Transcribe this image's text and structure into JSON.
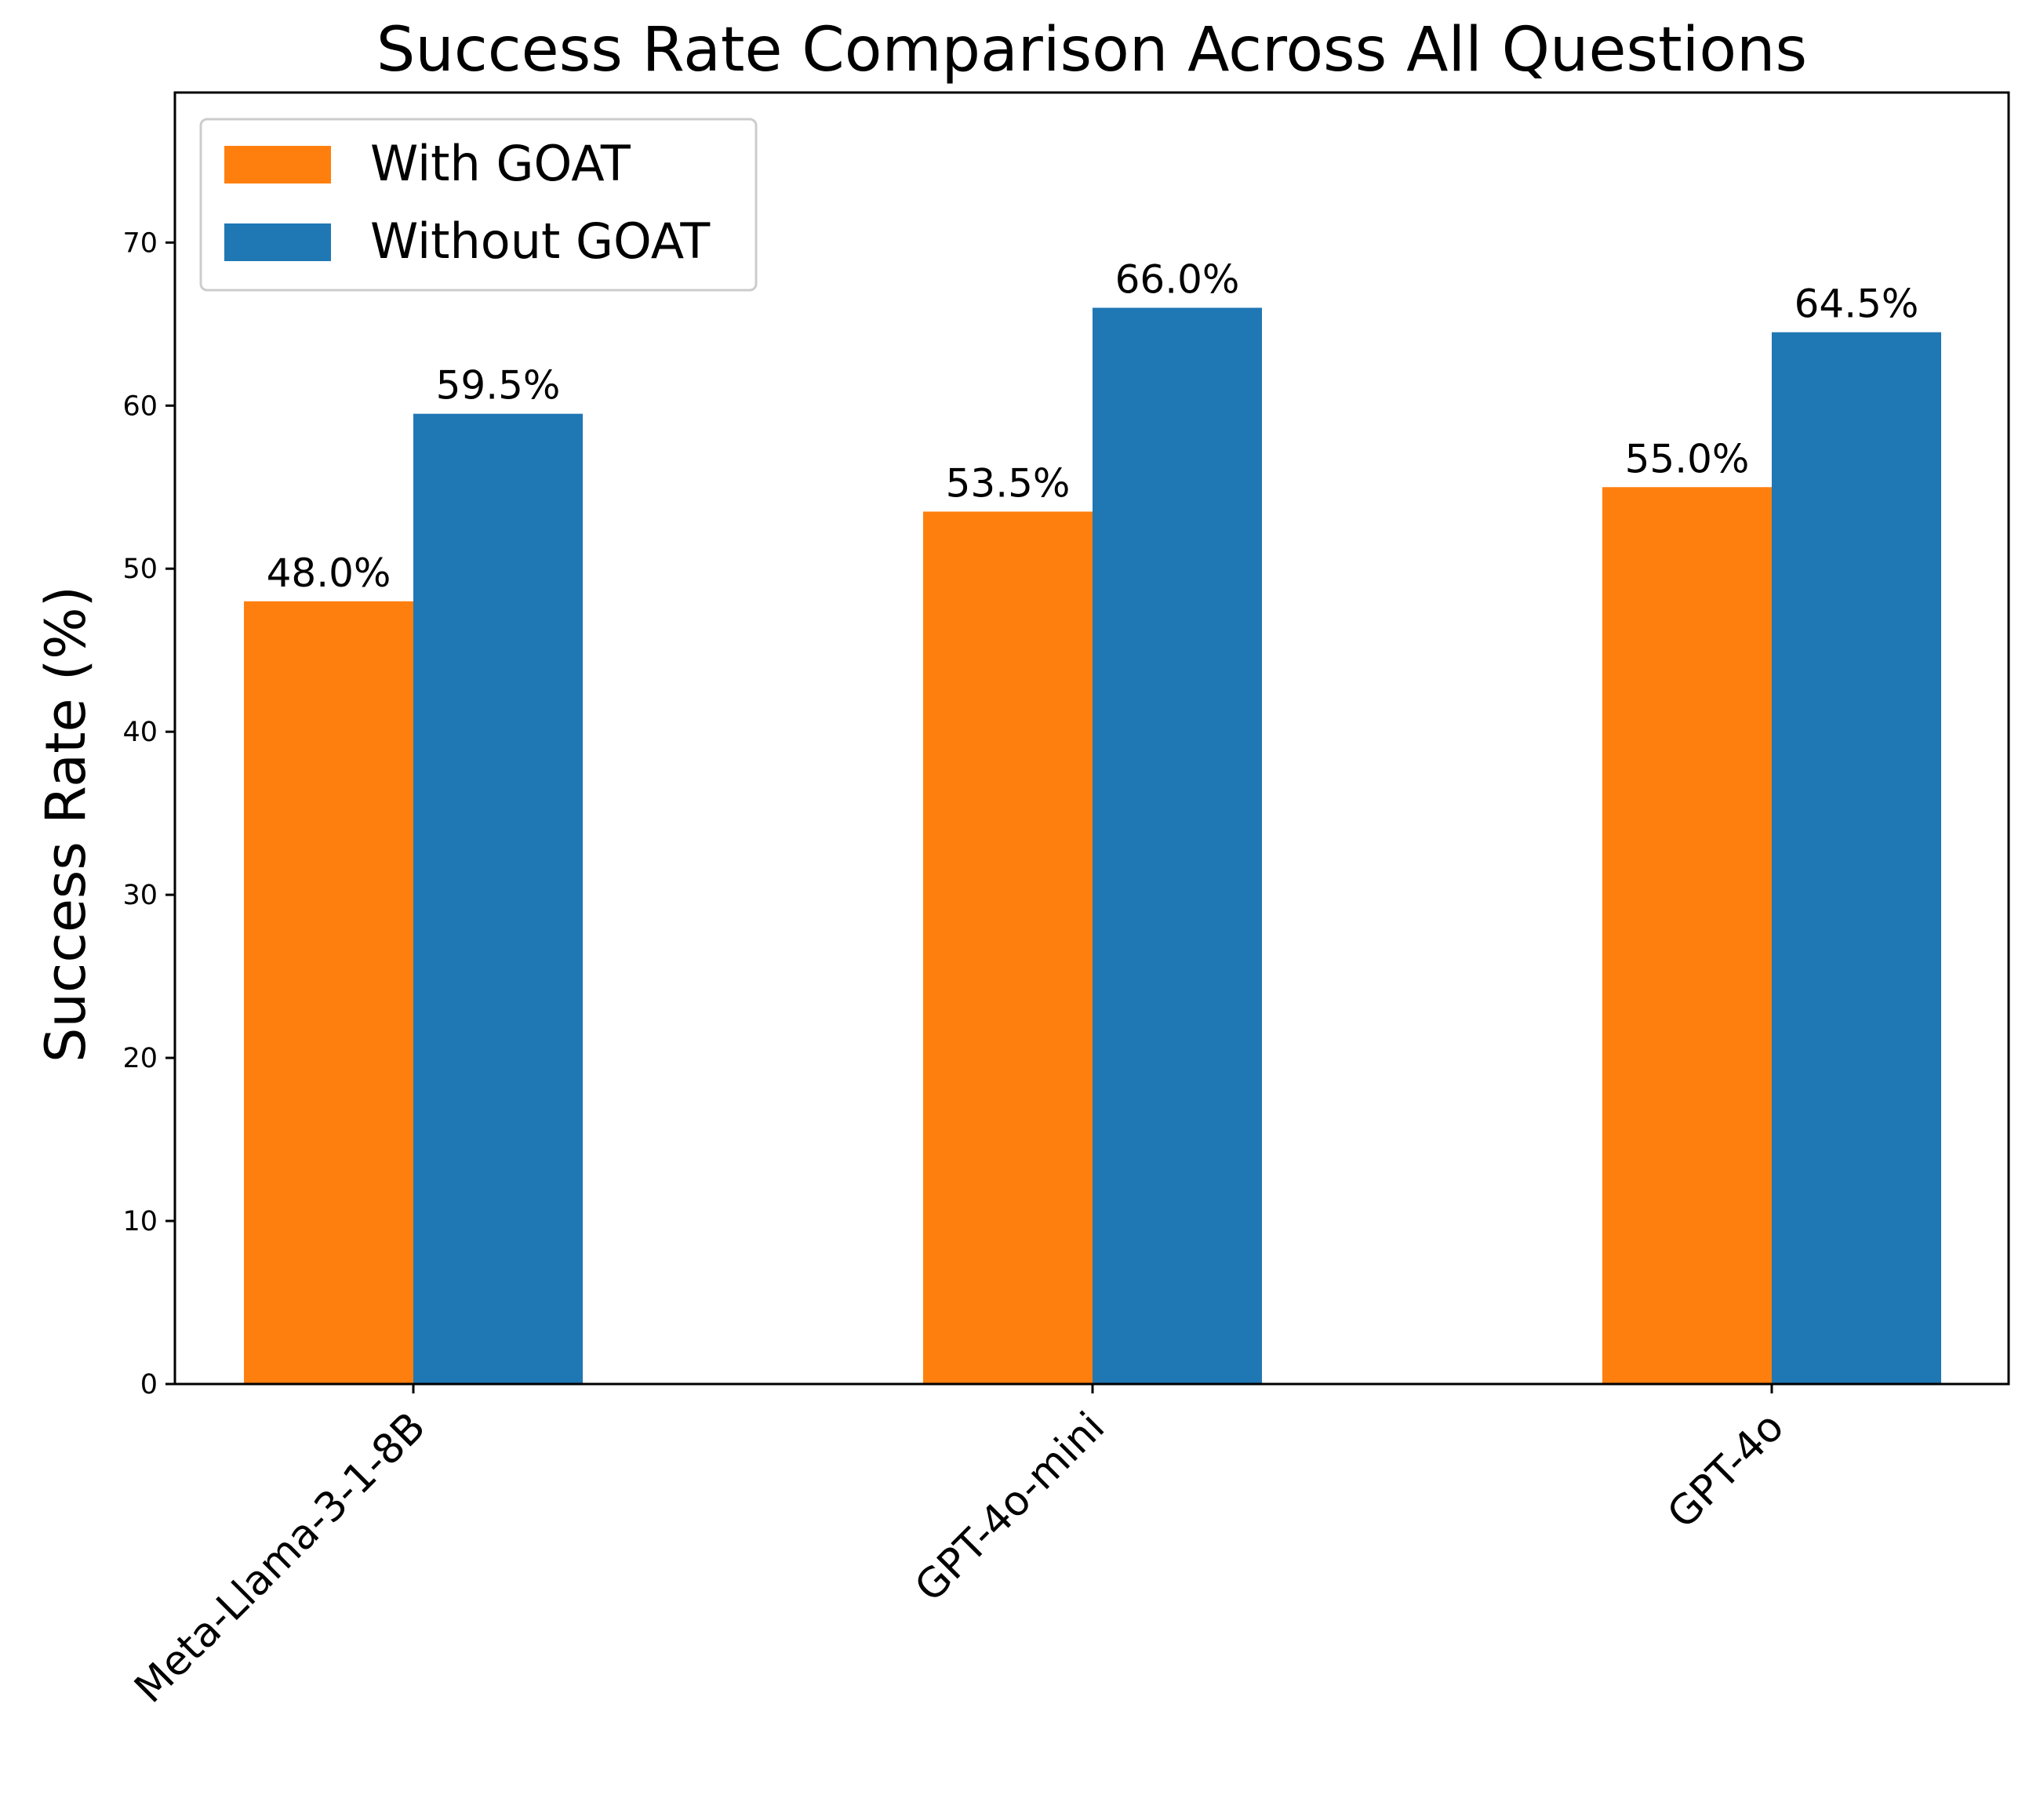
{
  "chart_data": {
    "type": "bar",
    "title": "Success Rate Comparison Across All Questions",
    "xlabel": "",
    "ylabel": "Success Rate (%)",
    "categories": [
      "Meta-Llama-3-1-8B",
      "GPT-4o-mini",
      "GPT-4o"
    ],
    "series": [
      {
        "name": "With GOAT",
        "color": "#ff7f0e",
        "values": [
          48.0,
          53.5,
          55.0
        ],
        "labels": [
          "48.0%",
          "53.5%",
          "55.0%"
        ]
      },
      {
        "name": "Without GOAT",
        "color": "#1f77b4",
        "values": [
          59.5,
          66.0,
          64.5
        ],
        "labels": [
          "59.5%",
          "66.0%",
          "64.5%"
        ]
      }
    ],
    "ylim": [
      0,
      79.2
    ],
    "yticks": [
      0,
      10,
      20,
      30,
      40,
      50,
      60,
      70
    ],
    "ytick_labels": [
      "0",
      "10",
      "20",
      "30",
      "40",
      "50",
      "60",
      "70"
    ],
    "grid": false,
    "legend_position": "top-left",
    "xtick_rotation": "45 degrees"
  }
}
